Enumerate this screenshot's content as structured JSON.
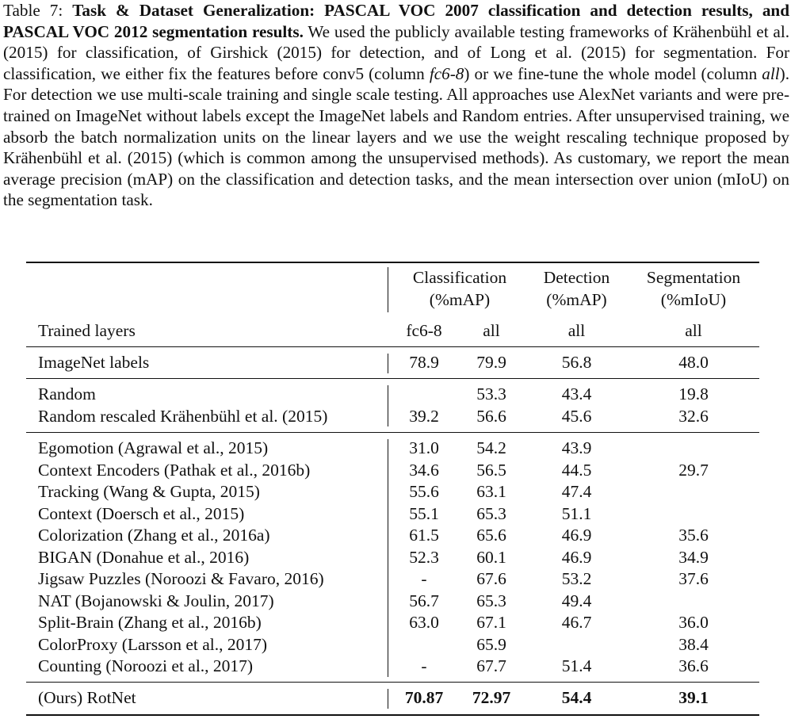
{
  "caption": {
    "label": "Table 7: ",
    "bold_title": "Task & Dataset Generalization: PASCAL VOC 2007 classification and detection results, and PASCAL VOC 2012 segmentation results.",
    "text_1": " We used the publicly available testing frameworks of Krähenbühl et al. (2015) for classification, of Girshick (2015) for detection, and of Long et al. (2015) for segmentation. For classification, we either fix the features before conv5 (column ",
    "italic_1": "fc6-8",
    "text_2": ") or we fine-tune the whole model (column ",
    "italic_2": "all",
    "text_3": "). For detection we use multi-scale training and single scale testing. All approaches use AlexNet variants and were pre-trained on ImageNet without labels except the ImageNet labels and Random entries. After unsupervised training, we absorb the batch normalization units on the linear layers and we use the weight rescaling technique proposed by Krähenbühl et al. (2015) (which is common among the unsupervised methods). As customary, we report the mean average precision (mAP) on the classification and detection tasks, and the mean intersection over union (mIoU) on the segmentation task."
  },
  "table": {
    "headers": {
      "classification": [
        "Classification",
        "(%mAP)"
      ],
      "detection": [
        "Detection",
        "(%mAP)"
      ],
      "segmentation": [
        "Segmentation",
        "(%mIoU)"
      ]
    },
    "trained_layers": {
      "label": "Trained layers",
      "values": [
        "fc6-8",
        "all",
        "all",
        "all"
      ]
    },
    "groups": [
      [
        {
          "method": "ImageNet labels",
          "values": [
            "78.9",
            "79.9",
            "56.8",
            "48.0"
          ]
        }
      ],
      [
        {
          "method": "Random",
          "values": [
            "",
            "53.3",
            "43.4",
            "19.8"
          ]
        },
        {
          "method": "Random rescaled Krähenbühl et al. (2015)",
          "values": [
            "39.2",
            "56.6",
            "45.6",
            "32.6"
          ]
        }
      ],
      [
        {
          "method": "Egomotion (Agrawal et al., 2015)",
          "values": [
            "31.0",
            "54.2",
            "43.9",
            ""
          ]
        },
        {
          "method": "Context Encoders (Pathak et al., 2016b)",
          "values": [
            "34.6",
            "56.5",
            "44.5",
            "29.7"
          ]
        },
        {
          "method": "Tracking (Wang & Gupta, 2015)",
          "values": [
            "55.6",
            "63.1",
            "47.4",
            ""
          ]
        },
        {
          "method": "Context (Doersch et al., 2015)",
          "values": [
            "55.1",
            "65.3",
            "51.1",
            ""
          ]
        },
        {
          "method": "Colorization (Zhang et al., 2016a)",
          "values": [
            "61.5",
            "65.6",
            "46.9",
            "35.6"
          ]
        },
        {
          "method": "BIGAN (Donahue et al., 2016)",
          "values": [
            "52.3",
            "60.1",
            "46.9",
            "34.9"
          ]
        },
        {
          "method": "Jigsaw Puzzles (Noroozi & Favaro, 2016)",
          "values": [
            "-",
            "67.6",
            "53.2",
            "37.6"
          ]
        },
        {
          "method": "NAT (Bojanowski & Joulin, 2017)",
          "values": [
            "56.7",
            "65.3",
            "49.4",
            ""
          ]
        },
        {
          "method": "Split-Brain (Zhang et al., 2016b)",
          "values": [
            "63.0",
            "67.1",
            "46.7",
            "36.0"
          ]
        },
        {
          "method": "ColorProxy (Larsson et al., 2017)",
          "values": [
            "",
            "65.9",
            "",
            "38.4"
          ]
        },
        {
          "method": "Counting (Noroozi et al., 2017)",
          "values": [
            "-",
            "67.7",
            "51.4",
            "36.6"
          ]
        }
      ],
      [
        {
          "method": "(Ours) RotNet",
          "values": [
            "70.87",
            "72.97",
            "54.4",
            "39.1"
          ],
          "bold": true
        }
      ]
    ]
  }
}
